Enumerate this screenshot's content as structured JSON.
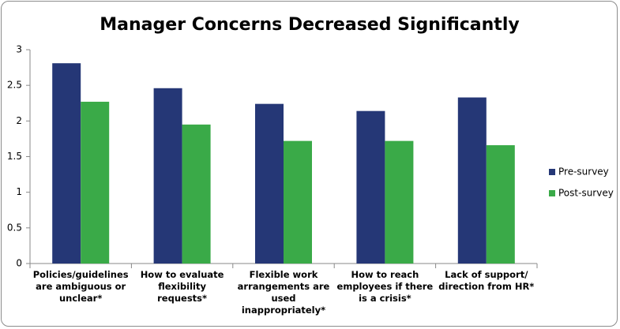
{
  "chart_data": {
    "type": "bar",
    "title": "Manager Concerns Decreased Significantly",
    "categories": [
      "Policies/guidelines are ambiguous or unclear*",
      "How to evaluate flexibility requests*",
      "Flexible work arrangements are used inappropriately*",
      "How to reach employees if there is a crisis*",
      "Lack of support/ direction from HR*"
    ],
    "series": [
      {
        "name": "Pre-survey",
        "color": "#253776",
        "values": [
          2.81,
          2.46,
          2.24,
          2.14,
          2.33
        ]
      },
      {
        "name": "Post-survey",
        "color": "#3aaa48",
        "values": [
          2.27,
          1.95,
          1.72,
          1.72,
          1.66
        ]
      }
    ],
    "ylim": [
      0,
      3
    ],
    "yticks": [
      0,
      0.5,
      1,
      1.5,
      2,
      2.5,
      3
    ],
    "grid": false,
    "legend": "right"
  }
}
